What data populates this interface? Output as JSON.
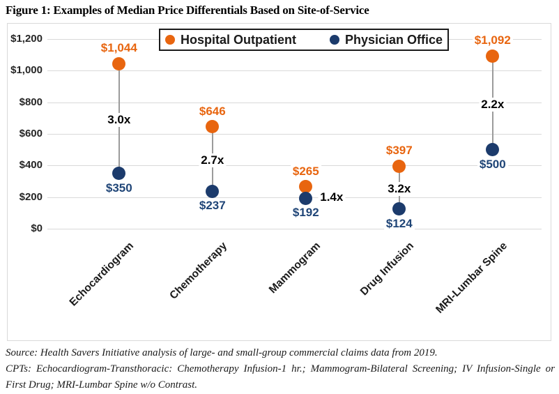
{
  "figure_title": "Figure 1: Examples of Median Price Differentials Based on Site-of-Service",
  "chart_data": {
    "type": "scatter",
    "subtype": "dumbbell",
    "title": "Figure 1: Examples of Median Price Differentials Based on Site-of-Service",
    "categories": [
      "Echocardiogram",
      "Chemotherapy",
      "Mammogram",
      "Drug Infusion",
      "MRI-Lumbar Spine"
    ],
    "series": [
      {
        "name": "Hospital Outpatient",
        "color": "#e8650f",
        "label_color": "#e8650f",
        "values": [
          1044,
          646,
          265,
          397,
          1092
        ],
        "value_labels": [
          "$1,044",
          "$646",
          "$265",
          "$397",
          "$1,092"
        ]
      },
      {
        "name": "Physician Office",
        "color": "#1c3b6c",
        "label_color": "#1f4577",
        "values": [
          350,
          237,
          192,
          124,
          500
        ],
        "value_labels": [
          "$350",
          "$237",
          "$192",
          "$124",
          "$500"
        ]
      }
    ],
    "ratio_labels": [
      {
        "text": "3.0x",
        "dx": 0,
        "dy": 2
      },
      {
        "text": "2.7x",
        "dx": 0,
        "dy": 2
      },
      {
        "text": "1.4x",
        "dx": 37,
        "dy": 7
      },
      {
        "text": "3.2x",
        "dx": 0,
        "dy": 2
      },
      {
        "text": "2.2x",
        "dx": 0,
        "dy": 2
      }
    ],
    "ylim": [
      0,
      1200
    ],
    "ytick_step": 200,
    "ytick_labels": [
      "$0",
      "$200",
      "$400",
      "$600",
      "$800",
      "$1,000",
      "$1,200"
    ],
    "grid": true,
    "legend_position": "top-center",
    "colors": {
      "gridline": "#d9d9d9",
      "connector": "#9b9b9b",
      "ratio_text": "#000000"
    }
  },
  "footer": {
    "source_line": "Source: Health Savers Initiative analysis of large- and small-group commercial claims data from 2019.",
    "cpt_line": "CPTs: Echocardiogram-Transthoracic: Chemotherapy Infusion-1 hr.; Mammogram-Bilateral Screening; IV Infusion-Single or First Drug; MRI-Lumbar Spine w/o Contrast."
  }
}
